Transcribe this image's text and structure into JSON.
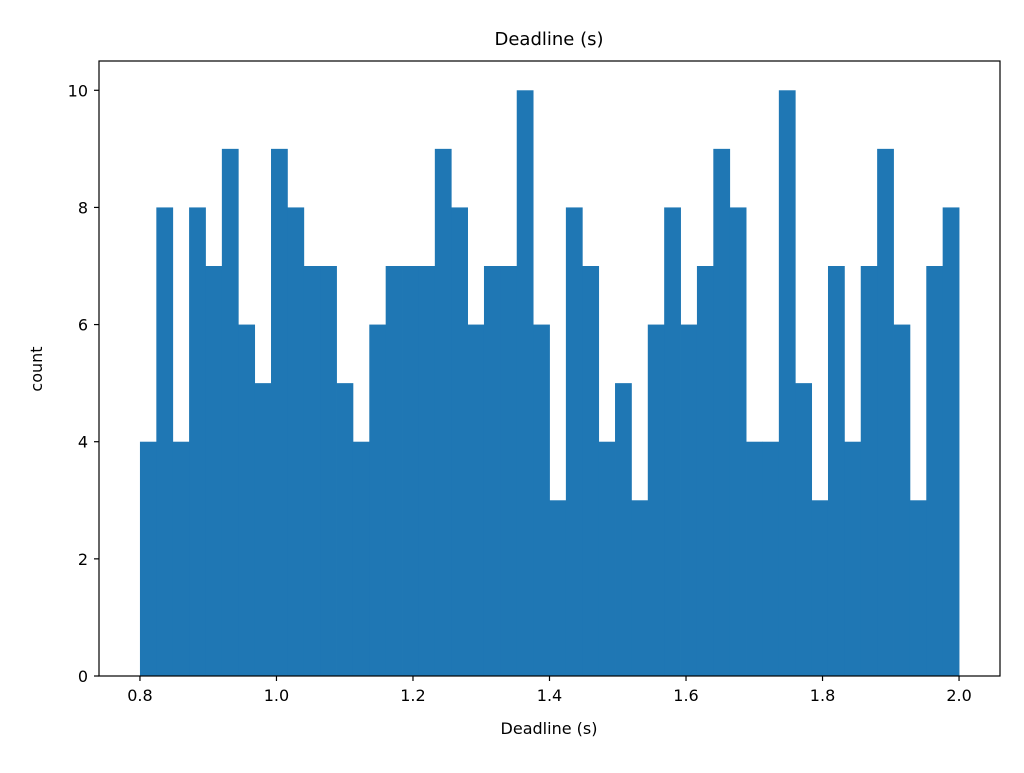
{
  "chart_data": {
    "type": "bar",
    "title": "Deadline (s)",
    "xlabel": "Deadline (s)",
    "ylabel": "count",
    "bin_start": 0.8,
    "bin_end": 2.0,
    "counts": [
      4,
      8,
      4,
      8,
      7,
      9,
      6,
      5,
      9,
      8,
      7,
      7,
      5,
      4,
      6,
      7,
      7,
      7,
      9,
      8,
      6,
      7,
      7,
      10,
      6,
      3,
      8,
      7,
      4,
      5,
      3,
      6,
      8,
      6,
      7,
      9,
      8,
      4,
      4,
      10,
      5,
      3,
      7,
      4,
      7,
      9,
      6,
      3,
      7,
      8
    ],
    "xlim": [
      0.74,
      2.06
    ],
    "ylim": [
      0,
      10.5
    ],
    "xticks": [
      "0.8",
      "1.0",
      "1.2",
      "1.4",
      "1.6",
      "1.8",
      "2.0"
    ],
    "yticks": [
      "0",
      "2",
      "4",
      "6",
      "8",
      "10"
    ],
    "bar_color": "#1f77b4",
    "grid": false,
    "legend": "none"
  }
}
